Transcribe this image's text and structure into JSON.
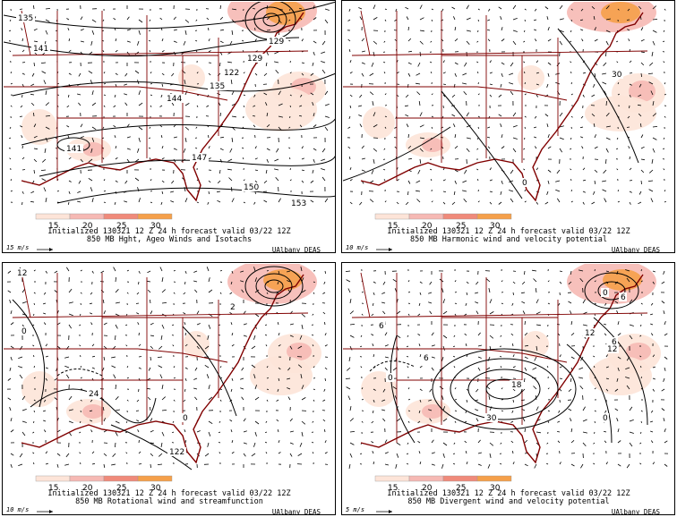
{
  "colors": {
    "shade_low": "#fde4d8",
    "shade_mid": "#f6b9b4",
    "shade_high": "#f08a7a",
    "shade_peak": "#f5a04a",
    "border": "#800000",
    "contour": "#000000"
  },
  "panels": [
    {
      "id": "top-left",
      "init_line": "Initialized 130321 12 Z   24 h forecast valid 03/22 12Z",
      "title_line": "850 MB Hght, Ageo Winds and Isotachs",
      "scale_label": "15 m/s",
      "credit": "UAlbany DEAS",
      "colorbar_ticks": [
        "15",
        "20",
        "25",
        "30"
      ],
      "contour_labels": [
        "135",
        "141",
        "129",
        "129",
        "122",
        "135",
        "141",
        "144",
        "147",
        "150",
        "153"
      ]
    },
    {
      "id": "top-right",
      "init_line": "Initialized 130321 12 Z   24 h forecast valid 03/22 12Z",
      "title_line": "850 MB Harmonic wind and velocity potential",
      "scale_label": "10 m/s",
      "credit": "UAlbany DEAS",
      "colorbar_ticks": [
        "15",
        "20",
        "25",
        "30"
      ],
      "contour_labels": [
        "30",
        "0"
      ]
    },
    {
      "id": "bottom-left",
      "init_line": "Initialized 130321 12 Z   24 h forecast valid 03/22 12Z",
      "title_line": "850 MB Rotational wind and streamfunction",
      "scale_label": "10 m/s",
      "credit": "UAlbany DEAS",
      "colorbar_ticks": [
        "15",
        "20",
        "25",
        "30"
      ],
      "contour_labels": [
        "12",
        "2",
        "0",
        "24",
        "0",
        "122"
      ]
    },
    {
      "id": "bottom-right",
      "init_line": "Initialized 130321 12 Z   24 h forecast valid 03/22 12Z",
      "title_line": "850 MB Divergent wind and velocity potential",
      "scale_label": "5 m/s",
      "credit": "UAlbany DEAS",
      "colorbar_ticks": [
        "15",
        "20",
        "25",
        "30"
      ],
      "contour_labels": [
        "0",
        "6",
        "12",
        "6",
        "0",
        "18",
        "30",
        "6",
        "6",
        "12",
        "0"
      ]
    }
  ]
}
